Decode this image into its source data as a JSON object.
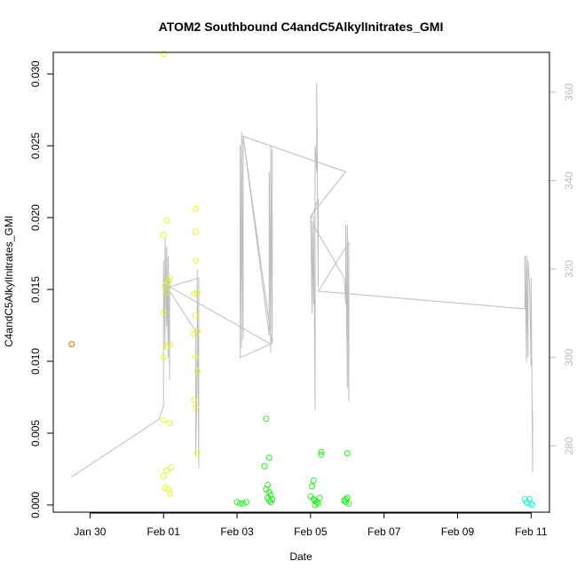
{
  "chart_data": {
    "type": "scatter",
    "title": "ATOM2 Southbound C4andC5AlkylInitrates_GMI",
    "xlabel": "Date",
    "ylabel": "C4andC5AlkylInitrates_GMI",
    "x_ticks": [
      "Jan 30",
      "Feb 01",
      "Feb 03",
      "Feb 05",
      "Feb 07",
      "Feb 09",
      "Feb 11"
    ],
    "y_ticks": [
      "0.000",
      "0.005",
      "0.010",
      "0.015",
      "0.020",
      "0.025",
      "0.030"
    ],
    "y_right_ticks": [
      "280",
      "300",
      "320",
      "340",
      "360"
    ],
    "xlim": [
      "2017-01-29T00:00",
      "2017-02-11T12:00"
    ],
    "ylim": [
      -0.0005,
      0.0315
    ],
    "y_right_lim": [
      265.0,
      369.0
    ],
    "grid": false,
    "scatter_series": [
      {
        "color": "#ff6600",
        "points": [
          [
            "2017-01-29T12:00",
            0.0112
          ]
        ]
      },
      {
        "color": "#e6f22a",
        "points": [
          [
            "2017-02-01T00:00",
            0.0314
          ],
          [
            "2017-02-01T02:00",
            0.0198
          ],
          [
            "2017-02-01T00:00",
            0.0188
          ],
          [
            "2017-02-01T04:00",
            0.0158
          ],
          [
            "2017-02-01T03:00",
            0.0155
          ],
          [
            "2017-02-01T01:00",
            0.0153
          ],
          [
            "2017-02-01T02:00",
            0.0148
          ],
          [
            "2017-02-01T00:00",
            0.0134
          ],
          [
            "2017-02-01T04:00",
            0.0112
          ],
          [
            "2017-02-01T02:00",
            0.011
          ],
          [
            "2017-02-01T00:00",
            0.0103
          ],
          [
            "2017-02-01T00:00",
            0.0059
          ],
          [
            "2017-02-01T04:00",
            0.0057
          ],
          [
            "2017-02-01T05:00",
            0.0026
          ],
          [
            "2017-02-01T02:00",
            0.0024
          ],
          [
            "2017-02-01T00:00",
            0.002
          ],
          [
            "2017-02-01T01:00",
            0.0012
          ],
          [
            "2017-02-01T03:00",
            0.0011
          ],
          [
            "2017-02-01T04:00",
            0.0008
          ],
          [
            "2017-02-01T21:00",
            0.0206
          ],
          [
            "2017-02-01T21:00",
            0.019
          ],
          [
            "2017-02-01T21:00",
            0.017
          ],
          [
            "2017-02-01T22:00",
            0.0148
          ],
          [
            "2017-02-01T20:00",
            0.0147
          ],
          [
            "2017-02-01T21:00",
            0.0132
          ],
          [
            "2017-02-01T22:00",
            0.0121
          ],
          [
            "2017-02-01T20:00",
            0.0119
          ],
          [
            "2017-02-01T21:00",
            0.0103
          ],
          [
            "2017-02-01T22:00",
            0.0093
          ],
          [
            "2017-02-01T20:00",
            0.0073
          ],
          [
            "2017-02-01T21:00",
            0.0068
          ],
          [
            "2017-02-01T22:00",
            0.0036
          ]
        ]
      },
      {
        "color": "#23f01e",
        "points": [
          [
            "2017-02-03T00:00",
            0.0002
          ],
          [
            "2017-02-03T02:00",
            0.0001
          ],
          [
            "2017-02-03T04:00",
            0.0001
          ],
          [
            "2017-02-03T06:00",
            0.0002
          ],
          [
            "2017-02-03T19:00",
            0.006
          ],
          [
            "2017-02-03T21:00",
            0.0033
          ],
          [
            "2017-02-03T18:00",
            0.0027
          ],
          [
            "2017-02-03T20:00",
            0.0014
          ],
          [
            "2017-02-03T19:00",
            0.0011
          ],
          [
            "2017-02-03T21:00",
            0.0009
          ],
          [
            "2017-02-03T22:00",
            0.0007
          ],
          [
            "2017-02-03T20:00",
            0.0005
          ],
          [
            "2017-02-03T23:00",
            0.0004
          ],
          [
            "2017-02-03T21:00",
            0.0003
          ],
          [
            "2017-02-03T22:00",
            0.0002
          ],
          [
            "2017-02-05T02:00",
            0.0017
          ],
          [
            "2017-02-05T01:00",
            0.0013
          ],
          [
            "2017-02-05T00:00",
            0.0006
          ],
          [
            "2017-02-05T02:00",
            0.0004
          ],
          [
            "2017-02-05T03:00",
            0.0003
          ],
          [
            "2017-02-05T04:00",
            0.0002
          ],
          [
            "2017-02-05T06:00",
            0.0005
          ],
          [
            "2017-02-05T05:00",
            0.0001
          ],
          [
            "2017-02-05T03:00",
            0.0
          ],
          [
            "2017-02-05T07:00",
            0.0037
          ],
          [
            "2017-02-05T07:00",
            0.0035
          ],
          [
            "2017-02-06T00:00",
            0.0036
          ],
          [
            "2017-02-05T22:00",
            0.0003
          ],
          [
            "2017-02-05T23:00",
            0.0002
          ],
          [
            "2017-02-06T00:00",
            0.0005
          ],
          [
            "2017-02-05T23:00",
            0.0004
          ],
          [
            "2017-02-06T01:00",
            0.0001
          ]
        ]
      },
      {
        "color": "#2ef0d0",
        "points": [
          [
            "2017-02-10T20:00",
            0.0004
          ],
          [
            "2017-02-10T21:00",
            0.0002
          ],
          [
            "2017-02-10T22:00",
            0.0001
          ],
          [
            "2017-02-10T23:00",
            0.0004
          ],
          [
            "2017-02-11T00:00",
            0.0001
          ],
          [
            "2017-02-11T01:00",
            0.0
          ]
        ]
      }
    ],
    "line_series": {
      "color": "#bdbdbd",
      "axis": "right",
      "points": [
        [
          "2017-01-29T12:00",
          273
        ],
        [
          "2017-01-31T21:00",
          286
        ],
        [
          "2017-02-01T00:00",
          289
        ],
        [
          "2017-02-01T00:00",
          322
        ],
        [
          "2017-02-01T01:00",
          302
        ],
        [
          "2017-02-01T01:00",
          327
        ],
        [
          "2017-02-01T02:00",
          307
        ],
        [
          "2017-02-01T02:00",
          325
        ],
        [
          "2017-02-01T03:00",
          300
        ],
        [
          "2017-02-01T03:00",
          323
        ],
        [
          "2017-02-01T04:00",
          295
        ],
        [
          "2017-02-01T04:00",
          318
        ],
        [
          "2017-02-01T04:00",
          315
        ],
        [
          "2017-02-01T21:00",
          306
        ],
        [
          "2017-02-01T21:00",
          278
        ],
        [
          "2017-02-01T22:00",
          300
        ],
        [
          "2017-02-01T22:00",
          320
        ],
        [
          "2017-02-01T23:00",
          275
        ],
        [
          "2017-02-01T23:00",
          318
        ],
        [
          "2017-02-01T04:00",
          316
        ],
        [
          "2017-02-03T22:00",
          303
        ],
        [
          "2017-02-03T02:00",
          300
        ],
        [
          "2017-02-03T02:00",
          348
        ],
        [
          "2017-02-03T03:00",
          302
        ],
        [
          "2017-02-03T03:00",
          351
        ],
        [
          "2017-02-03T04:00",
          304
        ],
        [
          "2017-02-03T04:00",
          350
        ],
        [
          "2017-02-03T21:00",
          305
        ],
        [
          "2017-02-03T21:00",
          342
        ],
        [
          "2017-02-03T22:00",
          301
        ],
        [
          "2017-02-03T22:00",
          348
        ],
        [
          "2017-02-03T23:00",
          305
        ],
        [
          "2017-02-03T23:00",
          347
        ],
        [
          "2017-02-03T23:00",
          303
        ],
        [
          "2017-02-03T04:00",
          350
        ],
        [
          "2017-02-05T23:00",
          342
        ],
        [
          "2017-02-05T00:00",
          332
        ],
        [
          "2017-02-05T01:00",
          310
        ],
        [
          "2017-02-05T01:00",
          330
        ],
        [
          "2017-02-05T02:00",
          312
        ],
        [
          "2017-02-05T02:00",
          332
        ],
        [
          "2017-02-05T03:00",
          288
        ],
        [
          "2017-02-05T03:00",
          348
        ],
        [
          "2017-02-05T04:00",
          342
        ],
        [
          "2017-02-05T04:00",
          362
        ],
        [
          "2017-02-05T05:00",
          316
        ],
        [
          "2017-02-05T05:00",
          336
        ],
        [
          "2017-02-05T00:00",
          331
        ],
        [
          "2017-02-05T22:00",
          318
        ],
        [
          "2017-02-05T23:00",
          312
        ],
        [
          "2017-02-05T23:00",
          330
        ],
        [
          "2017-02-06T00:00",
          293
        ],
        [
          "2017-02-06T00:00",
          330
        ],
        [
          "2017-02-06T01:00",
          290
        ],
        [
          "2017-02-06T01:00",
          326
        ],
        [
          "2017-02-05T05:00",
          315
        ],
        [
          "2017-02-10T20:00",
          311
        ],
        [
          "2017-02-10T20:00",
          323
        ],
        [
          "2017-02-10T21:00",
          299
        ],
        [
          "2017-02-10T21:00",
          323
        ],
        [
          "2017-02-10T22:00",
          300
        ],
        [
          "2017-02-10T22:00",
          322
        ],
        [
          "2017-02-10T23:00",
          316
        ],
        [
          "2017-02-11T00:00",
          298
        ],
        [
          "2017-02-11T00:00",
          318
        ],
        [
          "2017-02-11T01:00",
          274
        ],
        [
          "2017-02-11T01:00",
          288
        ]
      ]
    }
  }
}
